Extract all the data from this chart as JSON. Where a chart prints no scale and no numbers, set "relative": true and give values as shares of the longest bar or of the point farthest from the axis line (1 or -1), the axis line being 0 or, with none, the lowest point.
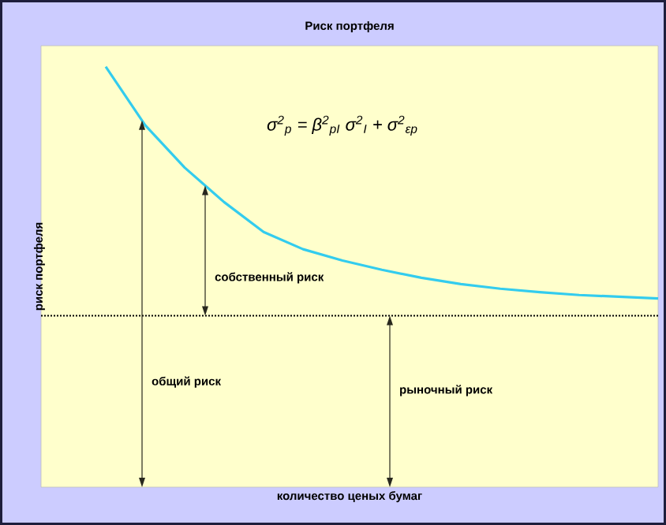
{
  "chart_data": {
    "type": "line",
    "title": "Риск портфеля",
    "xlabel": "количество ценых бумаг",
    "ylabel": "риск портфеля",
    "relative": true,
    "categories": [
      null,
      null,
      null,
      null,
      null,
      null,
      null,
      null,
      null,
      null,
      null,
      null,
      null,
      null,
      null
    ],
    "series": [
      {
        "color": "#33ccee",
        "values": [
          1,
          0.861,
          0.76,
          0.678,
          0.607,
          0.566,
          0.539,
          0.517,
          0.498,
          0.483,
          0.472,
          0.464,
          0.457,
          0.453,
          0.449
        ]
      }
    ],
    "ref_lines": [
      {
        "axis": "y",
        "value": 0.408,
        "color": "#000000",
        "line_style": "dotted"
      }
    ],
    "annotations": [
      "σ$^{2}$$_{p}$ = β$^{2}$$_{pI}$ σ$^{2}$$_{I}$ + σ$^{2}$$_{εp}$",
      "собственный риск",
      "общий риск",
      "рыночный риск"
    ],
    "marker": "none"
  }
}
